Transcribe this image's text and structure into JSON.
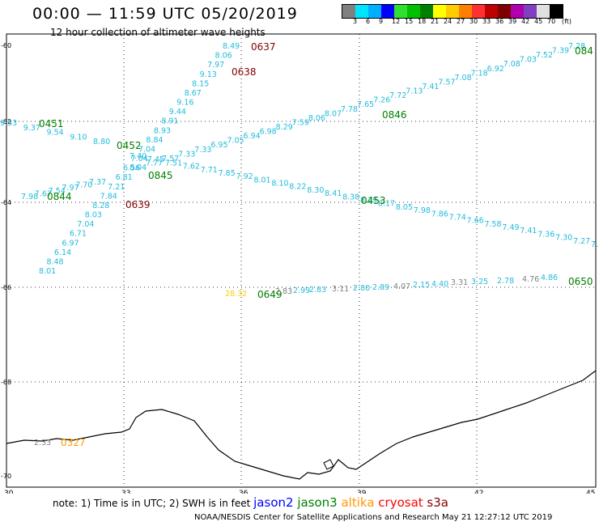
{
  "title": "00:00 — 11:59 UTC 05/20/2019",
  "subtitle": "12 hour collection of altimeter wave heights",
  "scale": {
    "unit_label": "(ft)",
    "colors": [
      "#808080",
      "#00e5ff",
      "#00b0ff",
      "#0000ff",
      "#30e030",
      "#00c000",
      "#008000",
      "#ffff00",
      "#ffcc00",
      "#ff8000",
      "#ff3030",
      "#c00000",
      "#800000",
      "#b000b0",
      "#8040c0",
      "#e0e0e0",
      "#000000"
    ],
    "labels": [
      "3",
      "6",
      "9",
      "12",
      "15",
      "18",
      "21",
      "24",
      "27",
      "30",
      "33",
      "36",
      "39",
      "42",
      "45",
      "70"
    ]
  },
  "axes": {
    "lat_labels": [
      "-60",
      "-62",
      "-64",
      "-66",
      "-68",
      "-70"
    ],
    "lon_labels": [
      "30",
      "33",
      "36",
      "39",
      "42",
      "45"
    ]
  },
  "tracks": [
    {
      "time": "0637",
      "color": "#800000",
      "values": [
        "8.49",
        "8.06",
        "7.97",
        "9.13",
        "8.15",
        "8.67",
        "9.16",
        "9.44",
        "8.91",
        "8.93",
        "8.84",
        "7.04",
        "7.04",
        "6.56",
        "6.81",
        "7.21",
        "7.84",
        "8.28",
        "8.03",
        "7.04",
        "6.71",
        "6.97",
        "6.14",
        "8.48",
        "8.01"
      ]
    },
    {
      "time": "0638",
      "color": "#800000",
      "values": []
    },
    {
      "time": "0639",
      "color": "#800000",
      "values": []
    },
    {
      "time": "0846",
      "color": "#008000",
      "values": [
        "7.28",
        "7.39",
        "7.52",
        "7.03",
        "7.08",
        "6.92",
        "7.18",
        "7.08",
        "7.57",
        "7.41",
        "7.13",
        "7.72",
        "7.26",
        "7.65",
        "7.78",
        "8.07",
        "8.06",
        "7.59",
        "8.29",
        "6.98",
        "6.94",
        "7.05",
        "6.95",
        "7.33",
        "7.33",
        "7.57",
        "7.77",
        "8.04"
      ]
    },
    {
      "time": "0845",
      "color": "#008000",
      "values": [
        "7.37",
        "7.70",
        "7.97",
        "7.54",
        "7.67",
        "7.98"
      ]
    },
    {
      "time": "0844",
      "color": "#008000",
      "values": []
    },
    {
      "time": "0451",
      "color": "#008000",
      "values": [
        "9.53",
        "9.37",
        "9.54",
        "9.10",
        "8.80"
      ]
    },
    {
      "time": "0452",
      "color": "#008000",
      "values": []
    },
    {
      "time": "0453",
      "color": "#008000",
      "values": []
    },
    {
      "time": "0649",
      "color": "#008000",
      "values": [
        "28.32",
        "2.83",
        "2.99",
        "2.83",
        "3.11",
        "2.80",
        "2.89",
        "4.07",
        "2.15",
        "4.40",
        "3.31",
        "3.25",
        "2.78",
        "4.76",
        "4.86"
      ]
    },
    {
      "time": "0650",
      "color": "#008000",
      "values": []
    },
    {
      "time": "0327",
      "color": "#ff9900",
      "values": [
        "2.33"
      ]
    },
    {
      "time": "084",
      "color": "#008000",
      "values": []
    }
  ],
  "note": {
    "prefix": "note:  1) Time is in UTC;  2) SWH is in feet",
    "satellites": [
      {
        "name": "jason2",
        "color": "#0000ff"
      },
      {
        "name": "jason3",
        "color": "#008000"
      },
      {
        "name": "altika",
        "color": "#ff9900"
      },
      {
        "name": "cryosat",
        "color": "#ff0000"
      },
      {
        "name": "s3a",
        "color": "#800000"
      }
    ]
  },
  "credit": "NOAA/NESDIS Center for Satellite Applications and Research     May 21 12:27:12 UTC 2019"
}
